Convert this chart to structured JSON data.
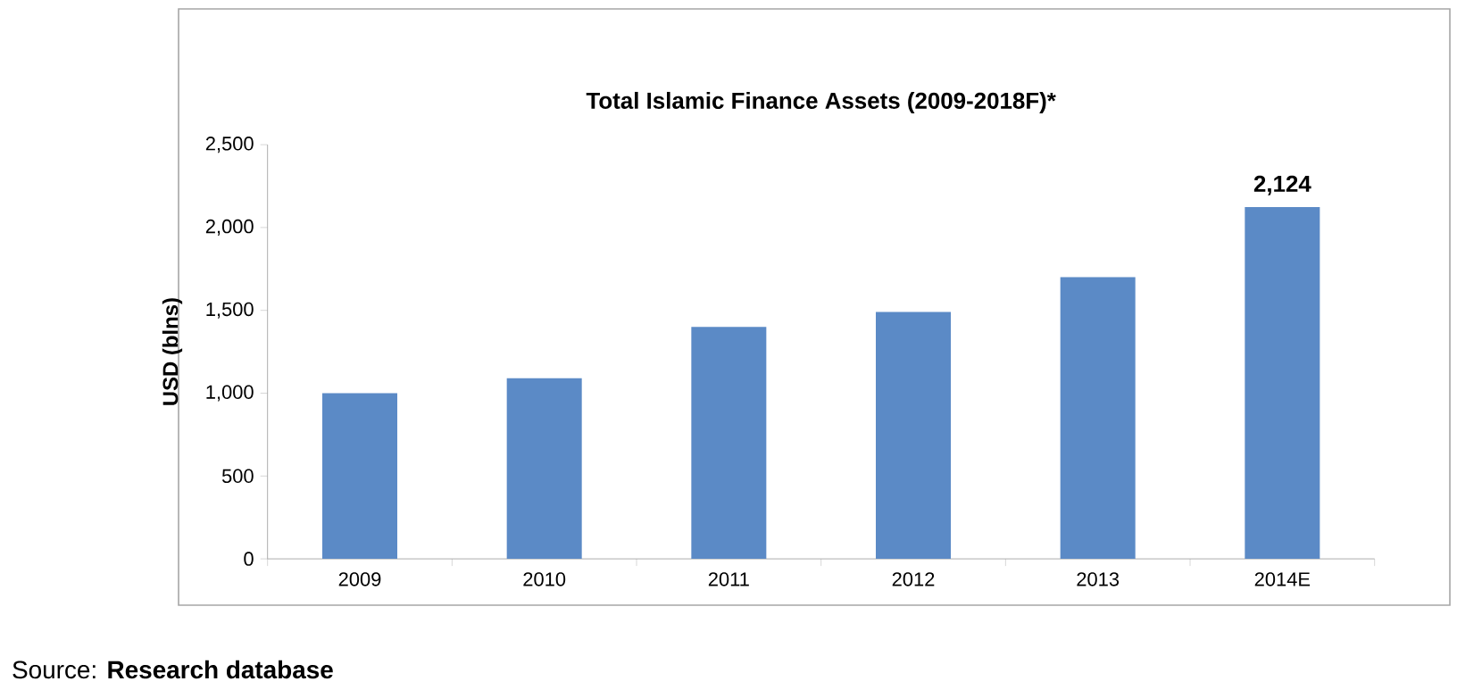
{
  "chart_data": {
    "type": "bar",
    "title": "Total Islamic Finance Assets (2009-2018F)*",
    "ylabel": "USD (blns)",
    "categories": [
      "2009",
      "2010",
      "2011",
      "2012",
      "2013",
      "2014E"
    ],
    "values": [
      1000,
      1090,
      1400,
      1490,
      1700,
      2124
    ],
    "value_labels": [
      null,
      null,
      null,
      null,
      null,
      "2,124"
    ],
    "color": "#5b8ac6",
    "ylim": [
      0,
      2500
    ],
    "yticks": [
      0,
      500,
      {
        "value": 1000,
        "label": "1,000"
      },
      {
        "value": 1500,
        "label": "1,500"
      },
      {
        "value": 2000,
        "label": "2,000"
      },
      {
        "value": 2500,
        "label": "2,500"
      }
    ],
    "annotations": [
      "Source: **Research database**"
    ]
  }
}
